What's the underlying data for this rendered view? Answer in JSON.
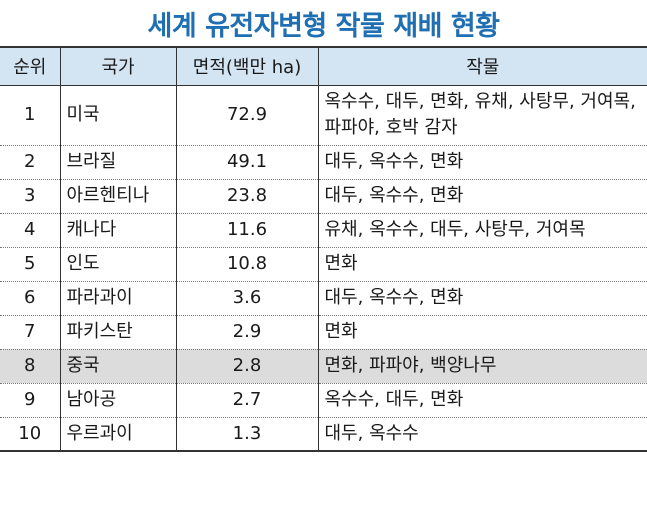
{
  "title": "세계 유전자변형 작물 재배 현황",
  "headers": {
    "rank": "순위",
    "country": "국가",
    "area": "면적(백만 ha)",
    "crops": "작물"
  },
  "rows": [
    {
      "rank": "1",
      "country": "미국",
      "area": "72.9",
      "crops": "옥수수, 대두, 면화, 유채, 사탕무, 거여목, 파파야, 호박 감자"
    },
    {
      "rank": "2",
      "country": "브라질",
      "area": "49.1",
      "crops": "대두, 옥수수, 면화"
    },
    {
      "rank": "3",
      "country": "아르헨티나",
      "area": "23.8",
      "crops": "대두, 옥수수, 면화"
    },
    {
      "rank": "4",
      "country": "캐나다",
      "area": "11.6",
      "crops": "유채, 옥수수, 대두, 사탕무, 거여목"
    },
    {
      "rank": "5",
      "country": "인도",
      "area": "10.8",
      "crops": "면화"
    },
    {
      "rank": "6",
      "country": "파라과이",
      "area": "3.6",
      "crops": "대두, 옥수수, 면화"
    },
    {
      "rank": "7",
      "country": "파키스탄",
      "area": "2.9",
      "crops": "면화"
    },
    {
      "rank": "8",
      "country": "중국",
      "area": "2.8",
      "crops": "면화, 파파야, 백양나무"
    },
    {
      "rank": "9",
      "country": "남아공",
      "area": "2.7",
      "crops": "옥수수, 대두, 면화"
    },
    {
      "rank": "10",
      "country": "우르과이",
      "area": "1.3",
      "crops": "대두, 옥수수"
    }
  ],
  "colors": {
    "title": "#1f6fb2",
    "header_bg": "#d3e4f2",
    "highlight_row_bg": "#dcdcdc"
  }
}
